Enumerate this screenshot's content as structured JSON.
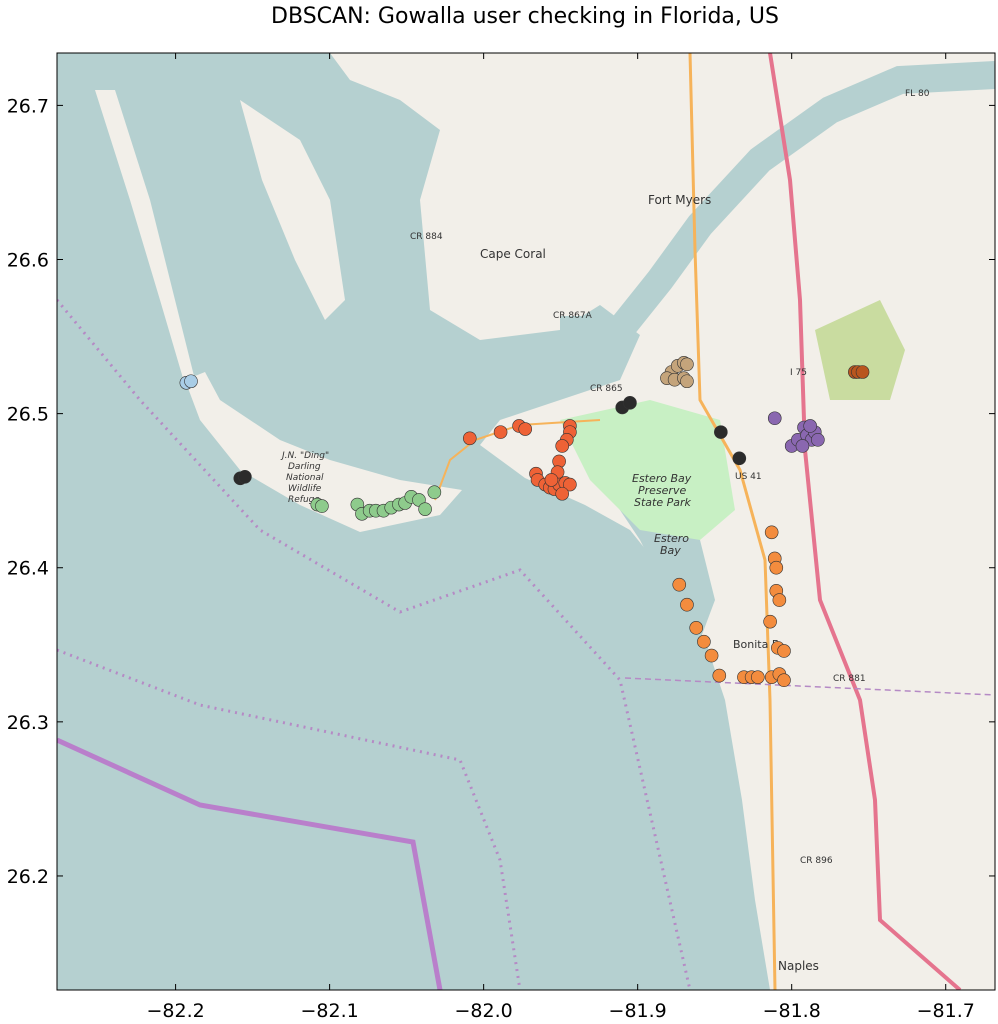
{
  "chart_data": {
    "type": "scatter",
    "title": "DBSCAN: Gowalla user checking in Florida, US",
    "xlabel": "",
    "ylabel": "",
    "xlim": [
      -82.277,
      -81.668
    ],
    "ylim": [
      26.126,
      26.734
    ],
    "xticks": [
      -82.2,
      -82.1,
      -82.0,
      -81.9,
      -81.8,
      -81.7
    ],
    "xtick_labels": [
      "−82.2",
      "−82.1",
      "−82.0",
      "−81.9",
      "−81.8",
      "−81.7"
    ],
    "yticks": [
      26.2,
      26.3,
      26.4,
      26.5,
      26.6,
      26.7
    ],
    "ytick_labels": [
      "26.2",
      "26.3",
      "26.4",
      "26.5",
      "26.6",
      "26.7"
    ],
    "grid": false,
    "legend": "none",
    "background": "OpenStreetMap basemap",
    "series": [
      {
        "color": "#a9cde6",
        "points": [
          [
            -82.193,
            26.52
          ],
          [
            -82.19,
            26.521
          ]
        ]
      },
      {
        "color": "#2b2b2b",
        "points": [
          [
            -82.158,
            26.458
          ],
          [
            -82.155,
            26.459
          ],
          [
            -81.91,
            26.504
          ],
          [
            -81.905,
            26.507
          ],
          [
            -81.846,
            26.488
          ],
          [
            -81.834,
            26.471
          ]
        ]
      },
      {
        "color": "#8ecb8c",
        "points": [
          [
            -82.108,
            26.441
          ],
          [
            -82.105,
            26.44
          ],
          [
            -82.082,
            26.441
          ],
          [
            -82.079,
            26.435
          ],
          [
            -82.074,
            26.437
          ],
          [
            -82.07,
            26.437
          ],
          [
            -82.065,
            26.437
          ],
          [
            -82.06,
            26.439
          ],
          [
            -82.055,
            26.441
          ],
          [
            -82.051,
            26.442
          ],
          [
            -82.047,
            26.446
          ],
          [
            -82.042,
            26.444
          ],
          [
            -82.038,
            26.438
          ],
          [
            -82.032,
            26.449
          ]
        ]
      },
      {
        "color": "#ee6236",
        "points": [
          [
            -82.009,
            26.484
          ],
          [
            -81.989,
            26.488
          ],
          [
            -81.977,
            26.492
          ],
          [
            -81.973,
            26.49
          ],
          [
            -81.944,
            26.492
          ],
          [
            -81.944,
            26.488
          ],
          [
            -81.946,
            26.483
          ],
          [
            -81.949,
            26.479
          ],
          [
            -81.951,
            26.469
          ],
          [
            -81.952,
            26.462
          ],
          [
            -81.966,
            26.461
          ],
          [
            -81.965,
            26.457
          ],
          [
            -81.96,
            26.454
          ],
          [
            -81.957,
            26.452
          ],
          [
            -81.954,
            26.451
          ],
          [
            -81.951,
            26.454
          ],
          [
            -81.947,
            26.455
          ],
          [
            -81.944,
            26.454
          ],
          [
            -81.949,
            26.448
          ],
          [
            -81.956,
            26.457
          ]
        ]
      },
      {
        "color": "#f38c3e",
        "points": [
          [
            -81.873,
            26.389
          ],
          [
            -81.868,
            26.376
          ],
          [
            -81.862,
            26.361
          ],
          [
            -81.857,
            26.352
          ],
          [
            -81.852,
            26.343
          ],
          [
            -81.847,
            26.33
          ],
          [
            -81.831,
            26.329
          ],
          [
            -81.826,
            26.329
          ],
          [
            -81.822,
            26.329
          ],
          [
            -81.813,
            26.329
          ],
          [
            -81.808,
            26.331
          ],
          [
            -81.805,
            26.327
          ],
          [
            -81.813,
            26.423
          ],
          [
            -81.811,
            26.406
          ],
          [
            -81.81,
            26.4
          ],
          [
            -81.81,
            26.385
          ],
          [
            -81.808,
            26.379
          ],
          [
            -81.814,
            26.365
          ],
          [
            -81.809,
            26.348
          ],
          [
            -81.805,
            26.346
          ]
        ]
      },
      {
        "color": "#c4a47b",
        "points": [
          [
            -81.878,
            26.527
          ],
          [
            -81.874,
            26.531
          ],
          [
            -81.87,
            26.533
          ],
          [
            -81.868,
            26.532
          ],
          [
            -81.881,
            26.523
          ],
          [
            -81.876,
            26.522
          ],
          [
            -81.87,
            26.523
          ],
          [
            -81.868,
            26.521
          ]
        ]
      },
      {
        "color": "#8a67b0",
        "points": [
          [
            -81.811,
            26.497
          ],
          [
            -81.8,
            26.479
          ],
          [
            -81.796,
            26.483
          ],
          [
            -81.792,
            26.491
          ],
          [
            -81.79,
            26.486
          ],
          [
            -81.787,
            26.483
          ],
          [
            -81.785,
            26.488
          ],
          [
            -81.783,
            26.483
          ],
          [
            -81.793,
            26.479
          ],
          [
            -81.788,
            26.492
          ]
        ]
      },
      {
        "color": "#b9561e",
        "points": [
          [
            -81.759,
            26.527
          ],
          [
            -81.757,
            26.527
          ],
          [
            -81.754,
            26.527
          ]
        ]
      }
    ]
  },
  "map_labels": {
    "cape_coral": "Cape Coral",
    "fort_myers": "Fort Myers",
    "naples": "Naples",
    "bonita": "Bonita B",
    "estero_park_1": "Estero Bay",
    "estero_park_2": "Preserve",
    "estero_park_3": "State Park",
    "estero_bay": "Estero",
    "estero_bay_2": "Bay",
    "refuge_1": "J.N. \"Ding\"",
    "refuge_2": "Darling",
    "refuge_3": "National",
    "refuge_4": "Wildlife",
    "refuge_5": "Refuge",
    "cr884": "CR 884",
    "cr867a": "CR 867A",
    "cr865": "CR 865",
    "us41": "US 41",
    "i75": "I 75",
    "fl80": "FL 80",
    "cr881": "CR 881",
    "cr896": "CR 896"
  }
}
